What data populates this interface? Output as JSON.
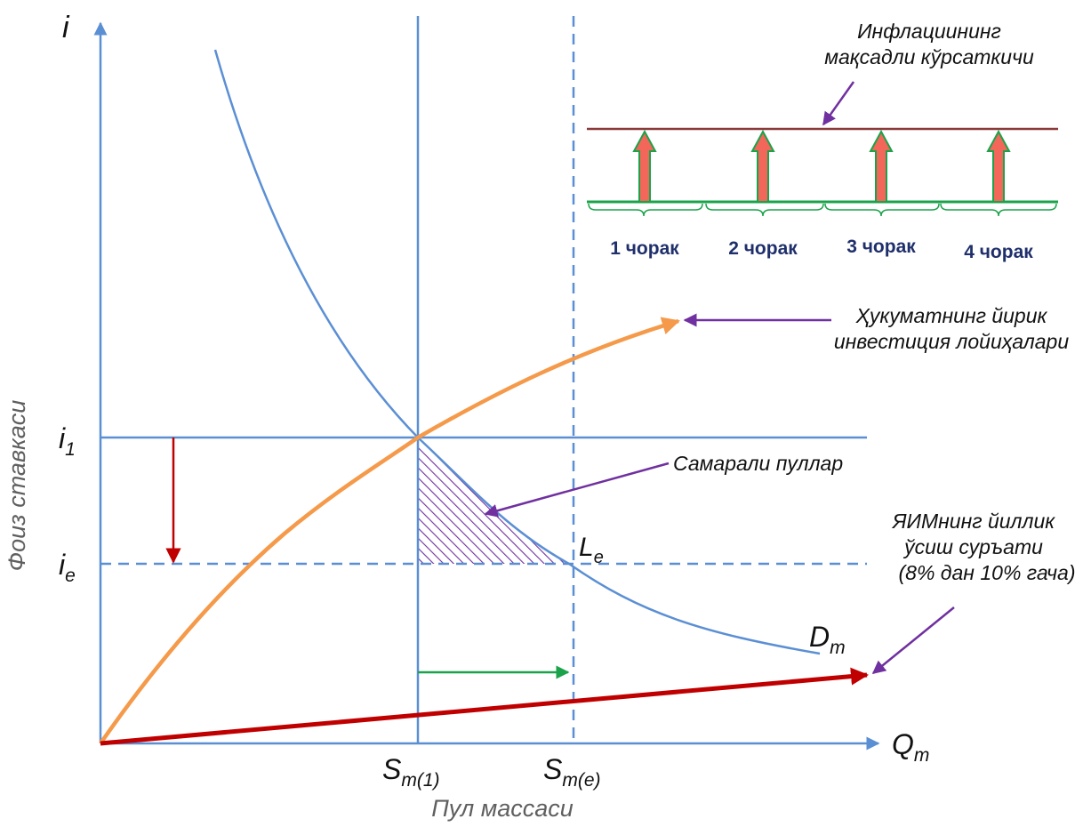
{
  "axes": {
    "y_symbol": "i",
    "x_symbol": "Q",
    "x_symbol_sub": "m",
    "y_title": "Фоиз ставкаси",
    "x_title": "Пул массаси"
  },
  "levels": {
    "i1_base": "i",
    "i1_sub": "1",
    "ie_base": "i",
    "ie_sub": "e"
  },
  "supply": {
    "s1_base": "S",
    "s1_sub": "m(1)",
    "se_base": "S",
    "se_sub": "m(e)"
  },
  "curve_labels": {
    "le_base": "L",
    "le_sub": "e",
    "dm_base": "D",
    "dm_sub": "m"
  },
  "annotations": {
    "inflation_line1": "Инфлациининг",
    "inflation_line2": "мақсадли кўрсаткичи",
    "investment_line1": "Ҳукуматнинг йирик",
    "investment_line2": "инвестиция лойиҳалари",
    "efficient_money": "Самарали пуллар",
    "gdp_line1": "ЯИМнинг йиллик",
    "gdp_line2": "ўсиш суръати",
    "gdp_line3": "(8% дан 10% гача)"
  },
  "quarters": [
    "1 чорак",
    "2 чорак",
    "3 чорак",
    "4 чорак"
  ],
  "colors": {
    "axis": "#5b8fd4",
    "demand_curve": "#5b8fd4",
    "investment_curve": "#f59a4a",
    "gdp_arrow": "#c00000",
    "rate_drop_arrow": "#c00000",
    "supply_shift_arrow": "#1aa34a",
    "inflation_target": "#8b3a3a",
    "quarter_arrow_fill": "#f2675a",
    "quarter_arrow_outline": "#1aa34a",
    "callout": "#7030a0",
    "hatch": "#7030a0"
  }
}
